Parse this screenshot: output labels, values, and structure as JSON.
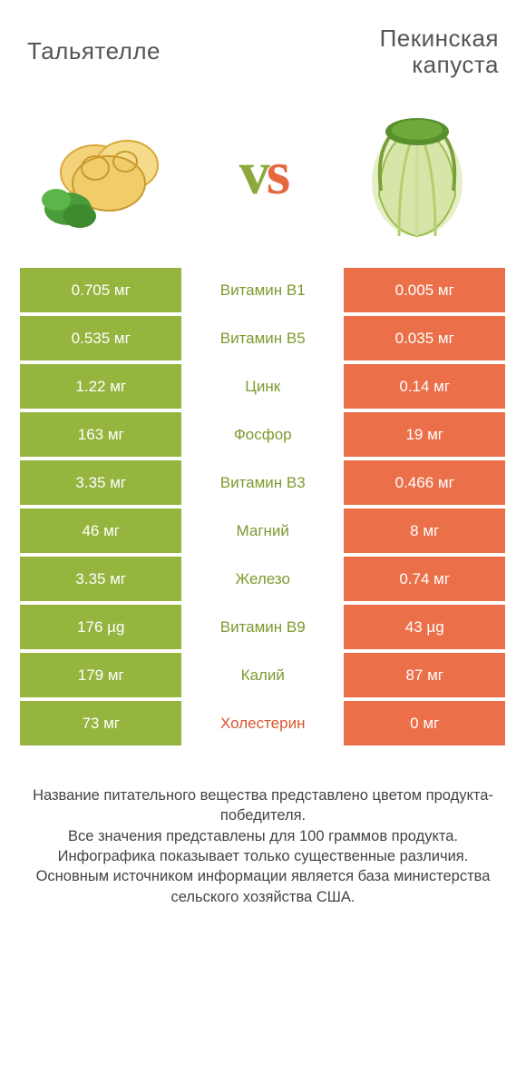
{
  "colors": {
    "green": "#95b53f",
    "orange": "#eb7049",
    "winner_green_text": "#7d9a2e",
    "winner_orange_text": "#d9562f"
  },
  "header": {
    "left": "Тальятелле",
    "right_line1": "Пекинская",
    "right_line2": "капуста"
  },
  "rows": [
    {
      "left": "0.705 мг",
      "mid": "Витамин B1",
      "right": "0.005 мг",
      "winner": "left"
    },
    {
      "left": "0.535 мг",
      "mid": "Витамин B5",
      "right": "0.035 мг",
      "winner": "left"
    },
    {
      "left": "1.22 мг",
      "mid": "Цинк",
      "right": "0.14 мг",
      "winner": "left"
    },
    {
      "left": "163 мг",
      "mid": "Фосфор",
      "right": "19 мг",
      "winner": "left"
    },
    {
      "left": "3.35 мг",
      "mid": "Витамин B3",
      "right": "0.466 мг",
      "winner": "left"
    },
    {
      "left": "46 мг",
      "mid": "Магний",
      "right": "8 мг",
      "winner": "left"
    },
    {
      "left": "3.35 мг",
      "mid": "Железо",
      "right": "0.74 мг",
      "winner": "left"
    },
    {
      "left": "176 µg",
      "mid": "Витамин B9",
      "right": "43 µg",
      "winner": "left"
    },
    {
      "left": "179 мг",
      "mid": "Калий",
      "right": "87 мг",
      "winner": "left"
    },
    {
      "left": "73 мг",
      "mid": "Холестерин",
      "right": "0 мг",
      "winner": "right"
    }
  ],
  "footer": {
    "l1": "Название питательного вещества представлено цветом продукта-победителя.",
    "l2": "Все значения представлены для 100 граммов продукта.",
    "l3": "Инфографика показывает только существенные различия.",
    "l4": "Основным источником информации является база министерства сельского хозяйства США."
  }
}
